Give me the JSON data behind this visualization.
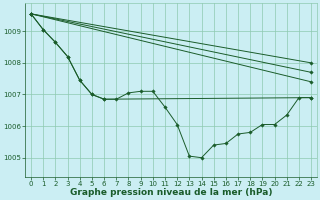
{
  "background_color": "#cbeef3",
  "grid_color": "#8ec9b0",
  "line_color": "#1a5c2a",
  "marker_color": "#1a5c2a",
  "title": "Graphe pression niveau de la mer (hPa)",
  "title_fontsize": 6.5,
  "ylim": [
    1004.4,
    1009.9
  ],
  "xlim": [
    -0.5,
    23.5
  ],
  "yticks": [
    1005,
    1006,
    1007,
    1008,
    1009
  ],
  "xticks": [
    0,
    1,
    2,
    3,
    4,
    5,
    6,
    7,
    8,
    9,
    10,
    11,
    12,
    13,
    14,
    15,
    16,
    17,
    18,
    19,
    20,
    21,
    22,
    23
  ],
  "series": [
    {
      "x": [
        0,
        1,
        2,
        3,
        4,
        5,
        6,
        7,
        8,
        9,
        10,
        11,
        12,
        13,
        14,
        15,
        16,
        17,
        18,
        19,
        20,
        21,
        22,
        23
      ],
      "y": [
        1009.55,
        1009.05,
        1008.65,
        1008.2,
        1007.45,
        1007.0,
        1006.85,
        1006.85,
        1007.05,
        1007.1,
        1007.1,
        1006.6,
        1006.05,
        1005.05,
        1005.0,
        1005.4,
        1005.45,
        1005.75,
        1005.8,
        1006.05,
        1006.05,
        1006.35,
        1006.9,
        1006.9
      ]
    },
    {
      "x": [
        0,
        23
      ],
      "y": [
        1009.55,
        1008.0
      ]
    },
    {
      "x": [
        0,
        23
      ],
      "y": [
        1009.55,
        1007.7
      ]
    },
    {
      "x": [
        0,
        23
      ],
      "y": [
        1009.55,
        1007.4
      ]
    },
    {
      "x": [
        0,
        1,
        2,
        3,
        4,
        5,
        6,
        23
      ],
      "y": [
        1009.55,
        1009.05,
        1008.65,
        1008.2,
        1007.45,
        1007.0,
        1006.85,
        1006.9
      ]
    }
  ]
}
